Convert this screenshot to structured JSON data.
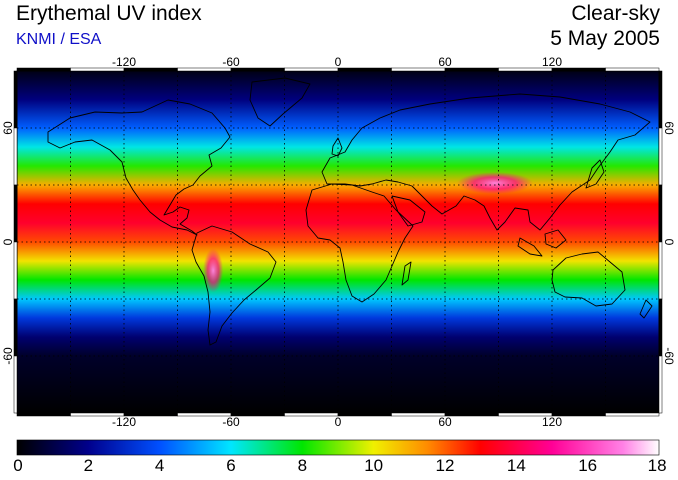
{
  "header": {
    "title": "Erythemal UV index",
    "provider": "KNMI / ESA",
    "sky_condition": "Clear-sky",
    "date": "5 May 2005"
  },
  "map": {
    "projection": "equirectangular",
    "lon_range": [
      -180,
      180
    ],
    "lat_range": [
      -90,
      90
    ],
    "lon_ticks": [
      -120,
      -60,
      0,
      60,
      120
    ],
    "lat_ticks": [
      60,
      0,
      -60
    ],
    "lon_tick_labels": [
      "-120",
      "-60",
      "0",
      "60",
      "120"
    ],
    "lat_tick_labels": [
      "60",
      "0",
      "-60"
    ],
    "gridlines": "dotted, every 30 degrees",
    "field": "erythemal UV index",
    "latitude_profile": [
      {
        "lat": 90,
        "uv": 0.3
      },
      {
        "lat": 75,
        "uv": 1.8
      },
      {
        "lat": 60,
        "uv": 4.2
      },
      {
        "lat": 50,
        "uv": 6.2
      },
      {
        "lat": 40,
        "uv": 8.3
      },
      {
        "lat": 30,
        "uv": 11.0
      },
      {
        "lat": 20,
        "uv": 13.0
      },
      {
        "lat": 10,
        "uv": 13.6
      },
      {
        "lat": 0,
        "uv": 12.2
      },
      {
        "lat": -10,
        "uv": 10.2
      },
      {
        "lat": -20,
        "uv": 8.0
      },
      {
        "lat": -30,
        "uv": 5.6
      },
      {
        "lat": -40,
        "uv": 3.4
      },
      {
        "lat": -50,
        "uv": 1.6
      },
      {
        "lat": -60,
        "uv": 0.6
      },
      {
        "lat": -90,
        "uv": 0.0
      }
    ],
    "local_maxima": [
      {
        "region": "Tibetan Plateau",
        "lon": 88,
        "lat": 31,
        "uv": 16
      },
      {
        "region": "Andes",
        "lon": -70,
        "lat": -15,
        "uv": 16
      }
    ]
  },
  "colorbar": {
    "min": 0,
    "max": 18,
    "tick_labels": [
      "0",
      "2",
      "4",
      "6",
      "8",
      "10",
      "12",
      "14",
      "16",
      "18"
    ],
    "stops": [
      {
        "value": 0,
        "color": "#000000"
      },
      {
        "value": 2,
        "color": "#00008c"
      },
      {
        "value": 4,
        "color": "#0050ff"
      },
      {
        "value": 6,
        "color": "#00e6ff"
      },
      {
        "value": 8,
        "color": "#00e600"
      },
      {
        "value": 10,
        "color": "#f0f000"
      },
      {
        "value": 11.5,
        "color": "#ff8c00"
      },
      {
        "value": 13,
        "color": "#ff0000"
      },
      {
        "value": 15,
        "color": "#ff0096"
      },
      {
        "value": 17,
        "color": "#ff82e6"
      },
      {
        "value": 18,
        "color": "#ffffff"
      }
    ]
  }
}
